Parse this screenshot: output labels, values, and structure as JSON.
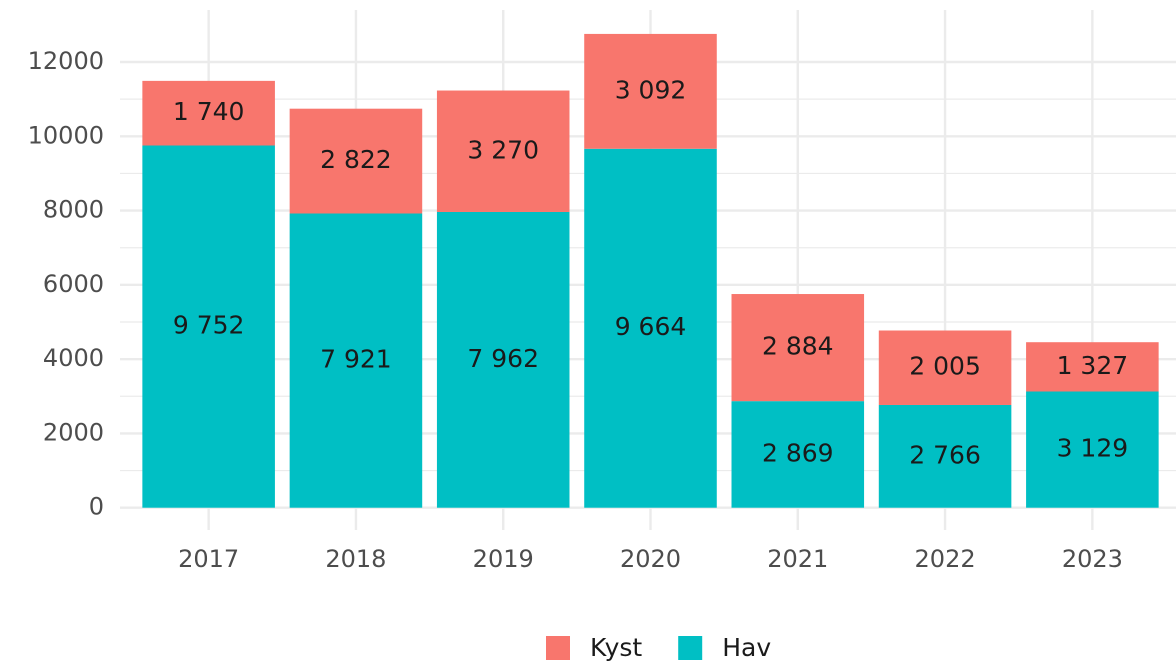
{
  "chart_data": {
    "type": "bar",
    "stacked": true,
    "categories": [
      "2017",
      "2018",
      "2019",
      "2020",
      "2021",
      "2022",
      "2023"
    ],
    "series": [
      {
        "name": "Hav",
        "color": "#00BFC4",
        "values": [
          9752,
          7921,
          7962,
          9664,
          2869,
          2766,
          3129
        ],
        "value_labels": [
          "9 752",
          "7 921",
          "7 962",
          "9 664",
          "2 869",
          "2 766",
          "3 129"
        ]
      },
      {
        "name": "Kyst",
        "color": "#F8766D",
        "values": [
          1740,
          2822,
          3270,
          3092,
          2884,
          2005,
          1327
        ],
        "value_labels": [
          "1 740",
          "2 822",
          "3 270",
          "3 092",
          "2 884",
          "2 005",
          "1 327"
        ]
      }
    ],
    "legend_order": [
      "Kyst",
      "Hav"
    ],
    "ylim": [
      -600,
      13400
    ],
    "yticks": [
      0,
      2000,
      4000,
      6000,
      8000,
      10000,
      12000
    ],
    "grid": true,
    "legend": "bottom"
  }
}
